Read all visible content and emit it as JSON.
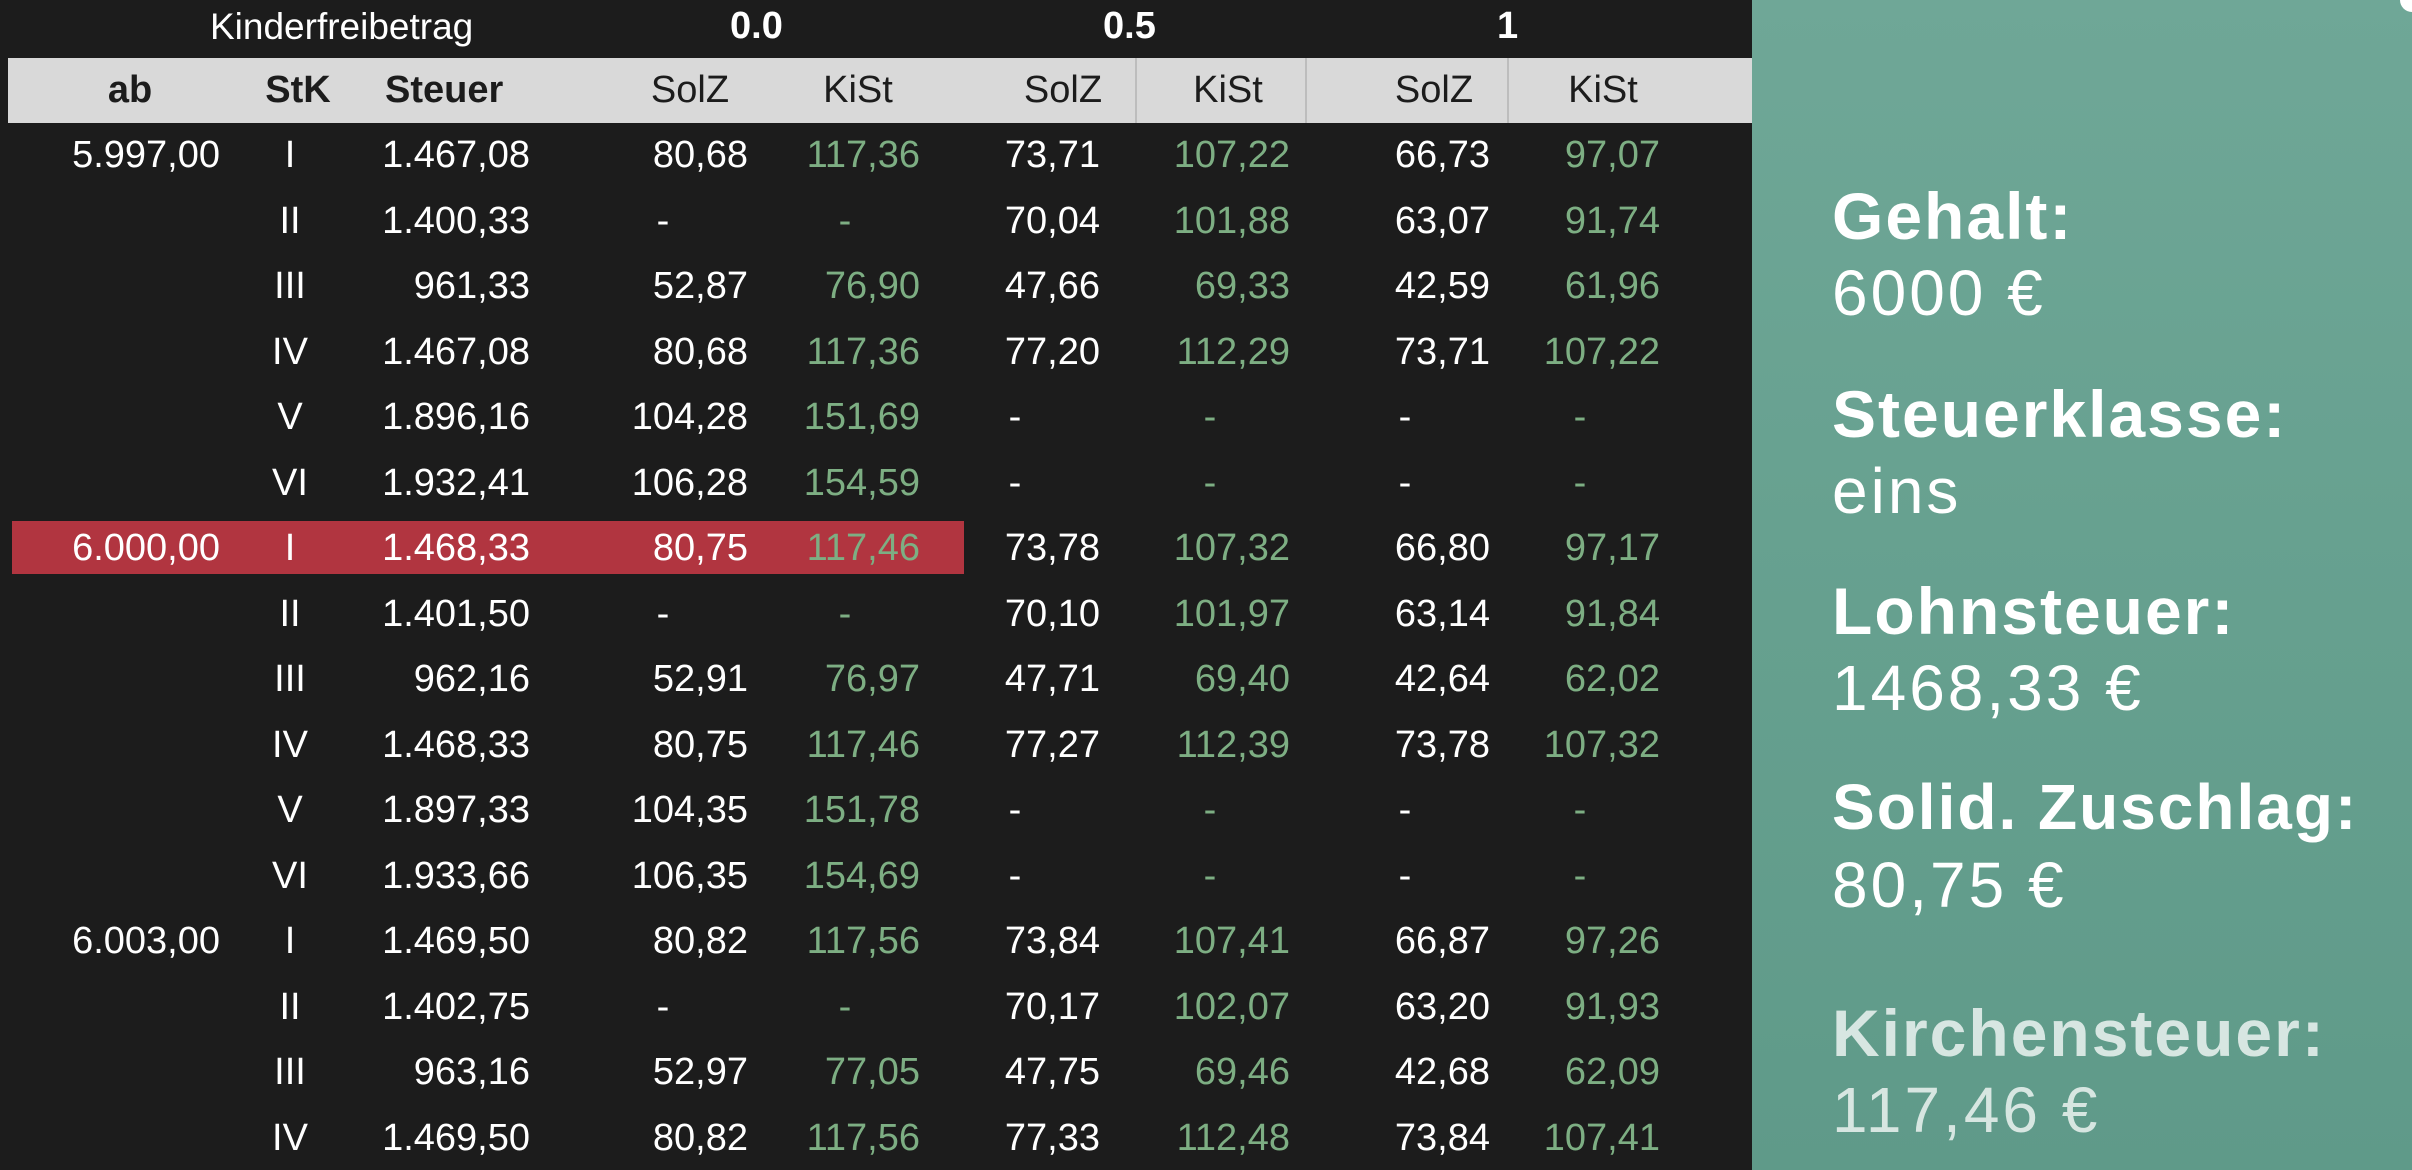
{
  "header": {
    "kinderfreibetrag_label": "Kinderfreibetrag",
    "kfb_values": [
      "0.0",
      "0.5",
      "1"
    ],
    "columns": {
      "ab": "ab",
      "stk": "StK",
      "steuer": "Steuer",
      "solz": "SolZ",
      "kist": "KiSt"
    }
  },
  "rows": [
    {
      "ab": "5.997,00",
      "stk": "I",
      "steuer": "1.467,08",
      "solz0": "80,68",
      "kist0": "117,36",
      "solz05": "73,71",
      "kist05": "107,22",
      "solz1": "66,73",
      "kist1": "97,07"
    },
    {
      "ab": "",
      "stk": "II",
      "steuer": "1.400,33",
      "solz0": "-",
      "kist0": "-",
      "solz05": "70,04",
      "kist05": "101,88",
      "solz1": "63,07",
      "kist1": "91,74"
    },
    {
      "ab": "",
      "stk": "III",
      "steuer": "961,33",
      "solz0": "52,87",
      "kist0": "76,90",
      "solz05": "47,66",
      "kist05": "69,33",
      "solz1": "42,59",
      "kist1": "61,96"
    },
    {
      "ab": "",
      "stk": "IV",
      "steuer": "1.467,08",
      "solz0": "80,68",
      "kist0": "117,36",
      "solz05": "77,20",
      "kist05": "112,29",
      "solz1": "73,71",
      "kist1": "107,22"
    },
    {
      "ab": "",
      "stk": "V",
      "steuer": "1.896,16",
      "solz0": "104,28",
      "kist0": "151,69",
      "solz05": "-",
      "kist05": "-",
      "solz1": "-",
      "kist1": "-"
    },
    {
      "ab": "",
      "stk": "VI",
      "steuer": "1.932,41",
      "solz0": "106,28",
      "kist0": "154,59",
      "solz05": "-",
      "kist05": "-",
      "solz1": "-",
      "kist1": "-"
    },
    {
      "ab": "6.000,00",
      "stk": "I",
      "steuer": "1.468,33",
      "solz0": "80,75",
      "kist0": "117,46",
      "solz05": "73,78",
      "kist05": "107,32",
      "solz1": "66,80",
      "kist1": "97,17"
    },
    {
      "ab": "",
      "stk": "II",
      "steuer": "1.401,50",
      "solz0": "-",
      "kist0": "-",
      "solz05": "70,10",
      "kist05": "101,97",
      "solz1": "63,14",
      "kist1": "91,84"
    },
    {
      "ab": "",
      "stk": "III",
      "steuer": "962,16",
      "solz0": "52,91",
      "kist0": "76,97",
      "solz05": "47,71",
      "kist05": "69,40",
      "solz1": "42,64",
      "kist1": "62,02"
    },
    {
      "ab": "",
      "stk": "IV",
      "steuer": "1.468,33",
      "solz0": "80,75",
      "kist0": "117,46",
      "solz05": "77,27",
      "kist05": "112,39",
      "solz1": "73,78",
      "kist1": "107,32"
    },
    {
      "ab": "",
      "stk": "V",
      "steuer": "1.897,33",
      "solz0": "104,35",
      "kist0": "151,78",
      "solz05": "-",
      "kist05": "-",
      "solz1": "-",
      "kist1": "-"
    },
    {
      "ab": "",
      "stk": "VI",
      "steuer": "1.933,66",
      "solz0": "106,35",
      "kist0": "154,69",
      "solz05": "-",
      "kist05": "-",
      "solz1": "-",
      "kist1": "-"
    },
    {
      "ab": "6.003,00",
      "stk": "I",
      "steuer": "1.469,50",
      "solz0": "80,82",
      "kist0": "117,56",
      "solz05": "73,84",
      "kist05": "107,41",
      "solz1": "66,87",
      "kist1": "97,26"
    },
    {
      "ab": "",
      "stk": "II",
      "steuer": "1.402,75",
      "solz0": "-",
      "kist0": "-",
      "solz05": "70,17",
      "kist05": "102,07",
      "solz1": "63,20",
      "kist1": "91,93"
    },
    {
      "ab": "",
      "stk": "III",
      "steuer": "963,16",
      "solz0": "52,97",
      "kist0": "77,05",
      "solz05": "47,75",
      "kist05": "69,46",
      "solz1": "42,68",
      "kist1": "62,09"
    },
    {
      "ab": "",
      "stk": "IV",
      "steuer": "1.469,50",
      "solz0": "80,82",
      "kist0": "117,56",
      "solz05": "77,33",
      "kist05": "112,48",
      "solz1": "73,84",
      "kist1": "107,41"
    }
  ],
  "panel": {
    "gehalt_label": "Gehalt:",
    "gehalt_value": "6000 €",
    "steuerklasse_label": "Steuerklasse:",
    "steuerklasse_value": "eins",
    "lohnsteuer_label": "Lohnsteuer:",
    "lohnsteuer_value": "1468,33 €",
    "soli_label": "Solid. Zuschlag:",
    "soli_value": "80,75 €",
    "kirchensteuer_label": "Kirchensteuer:",
    "kirchensteuer_value": "117,46 €"
  },
  "colors": {
    "background": "#1c1c1c",
    "header_bar": "#d9d9d9",
    "highlight_row": "#b13540",
    "kist_green": "#7dae83",
    "panel_teal": "#6fa797"
  }
}
